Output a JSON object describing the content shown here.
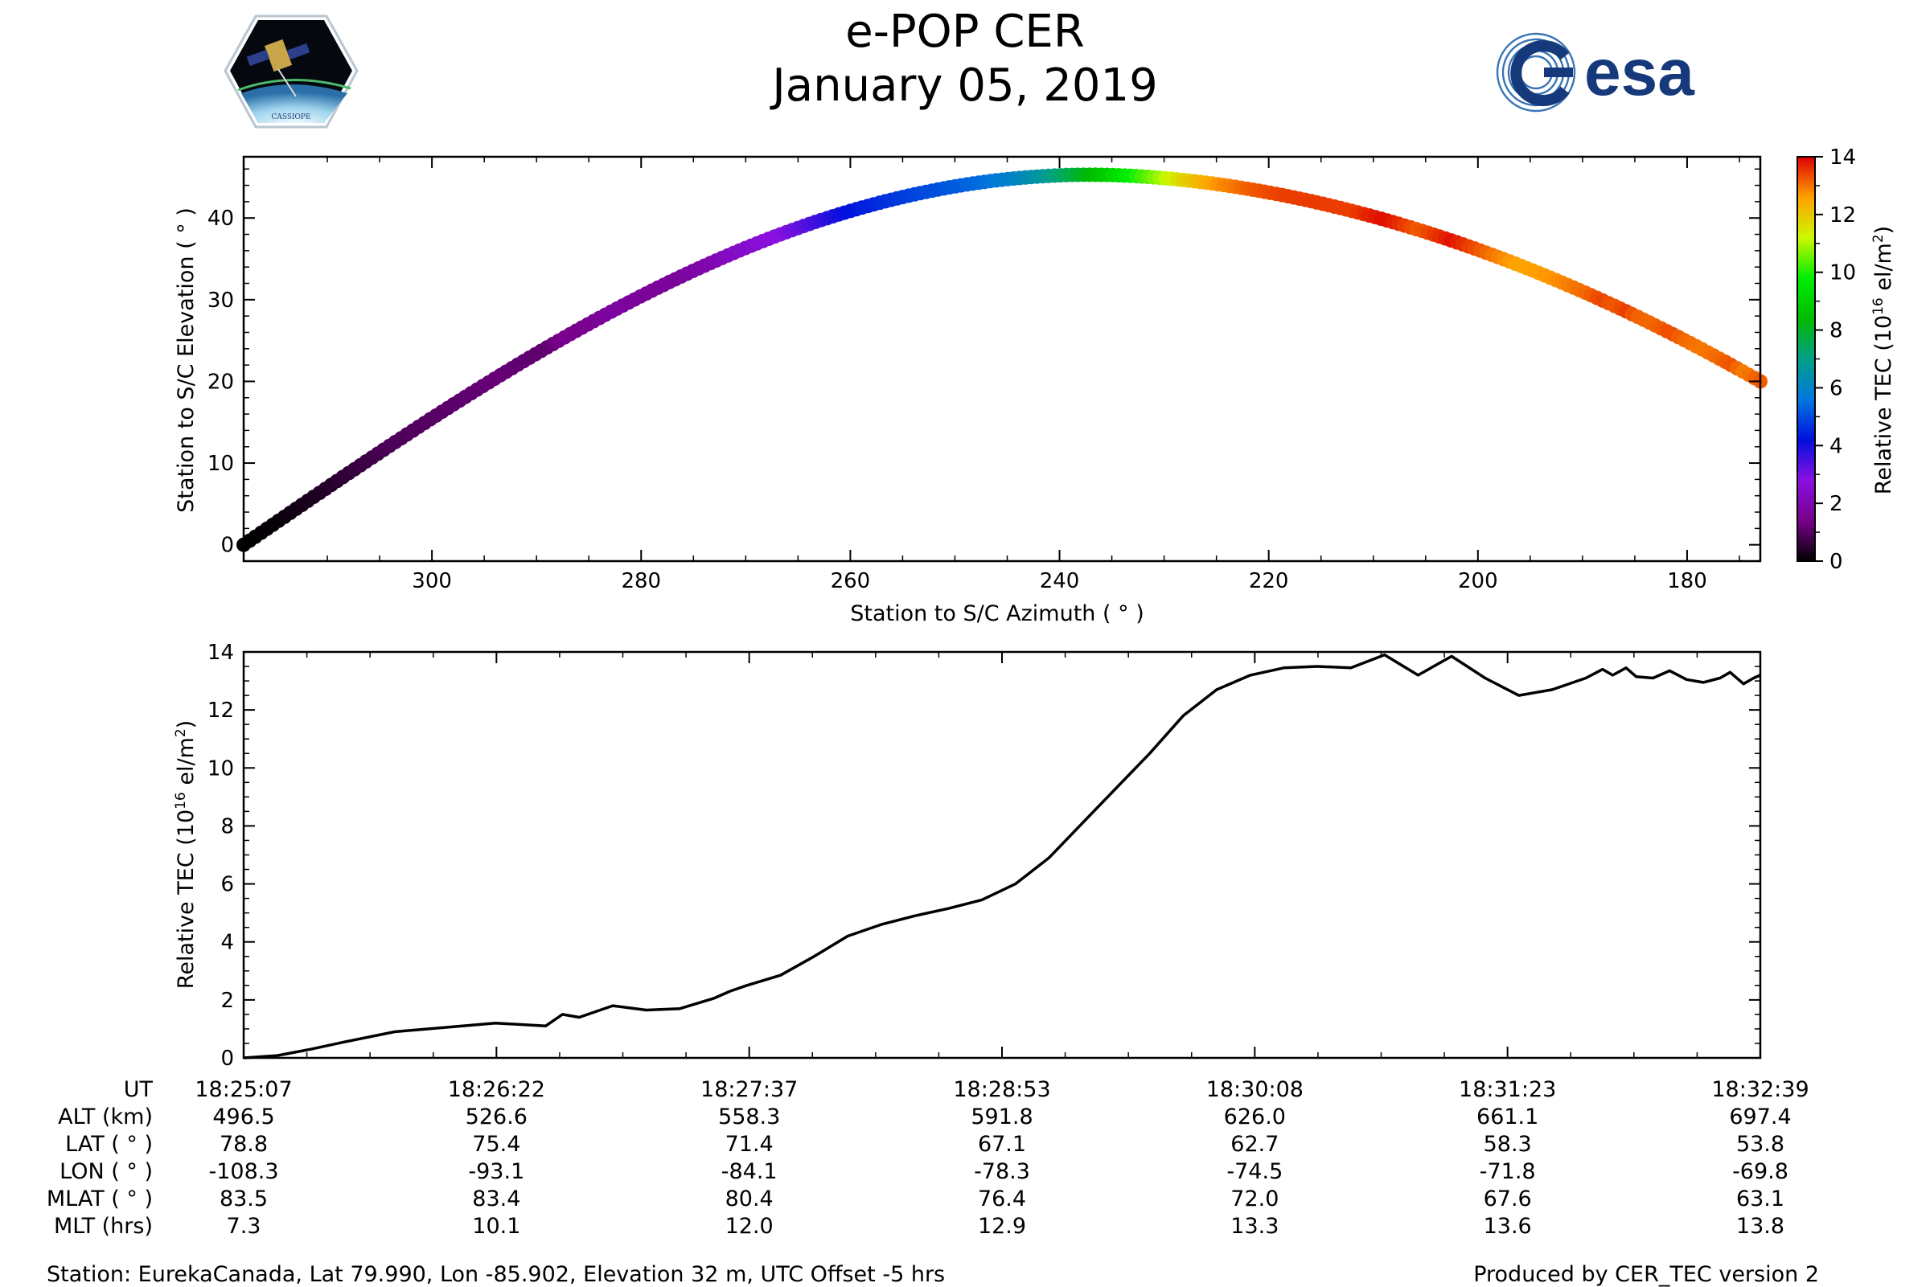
{
  "header": {
    "title": "e-POP CER",
    "date": "January 05, 2019",
    "logo_left_text": "CASSIOPE",
    "logo_right_text": "esa"
  },
  "chart_data": [
    {
      "id": "elevation-azimuth",
      "type": "scatter",
      "xlabel": "Station to S/C Azimuth ( ° )",
      "ylabel": "Station to S/C Elevation ( ° )",
      "xlim": [
        318,
        173
      ],
      "ylim": [
        -2,
        47.5
      ],
      "xticks": [
        300,
        280,
        260,
        240,
        220,
        200,
        180
      ],
      "yticks": [
        0,
        10,
        20,
        30,
        40
      ],
      "track": {
        "azimuth_start": 318,
        "azimuth_end": 173,
        "peak_azimuth": 237,
        "peak_elevation": 45.3,
        "end_elevation": 20.0
      },
      "colorbar": {
        "label": "Relative TEC (10^16 el/m^2)",
        "label_main": "Relative TEC (10",
        "label_sup": "16",
        "label_unit": " el/m",
        "label_sup2": "2",
        "label_close": ")",
        "range": [
          0,
          14
        ],
        "ticks": [
          0,
          2,
          4,
          6,
          8,
          10,
          12,
          14
        ],
        "colormap": "nipy_spectral"
      }
    },
    {
      "id": "tec-time",
      "type": "line",
      "ylabel": "Relative TEC (10^16 el/m^2)",
      "ylabel_main": "Relative TEC (10",
      "ylabel_sup": "16",
      "ylabel_unit": " el/m",
      "ylabel_sup2": "2",
      "ylabel_close": ")",
      "ylim": [
        0,
        14
      ],
      "yticks": [
        0,
        2,
        4,
        6,
        8,
        10,
        12,
        14
      ],
      "x_unit": "seconds since 18:25:07",
      "xlim": [
        0,
        452
      ],
      "series": [
        {
          "name": "Relative TEC",
          "x": [
            0,
            10,
            20,
            30,
            45,
            60,
            75,
            90,
            95,
            100,
            110,
            120,
            130,
            140,
            145,
            150,
            160,
            170,
            180,
            190,
            200,
            210,
            220,
            230,
            240,
            250,
            260,
            270,
            280,
            290,
            300,
            310,
            320,
            330,
            340,
            350,
            360,
            370,
            380,
            390,
            400,
            405,
            408,
            412,
            415,
            420,
            425,
            430,
            435,
            440,
            443,
            447,
            450,
            452
          ],
          "values": [
            0,
            0.08,
            0.3,
            0.55,
            0.9,
            1.05,
            1.2,
            1.1,
            1.5,
            1.4,
            1.8,
            1.65,
            1.7,
            2.05,
            2.3,
            2.5,
            2.85,
            3.5,
            4.2,
            4.6,
            4.9,
            5.15,
            5.45,
            6.0,
            6.9,
            8.1,
            9.3,
            10.5,
            11.8,
            12.7,
            13.2,
            13.45,
            13.5,
            13.45,
            13.9,
            13.2,
            13.85,
            13.1,
            12.5,
            12.7,
            13.1,
            13.4,
            13.2,
            13.45,
            13.15,
            13.1,
            13.35,
            13.05,
            12.95,
            13.1,
            13.3,
            12.9,
            13.1,
            13.2
          ]
        }
      ]
    }
  ],
  "table": {
    "row_labels": [
      "UT",
      "ALT (km)",
      "LAT ( ° )",
      "LON ( ° )",
      "MLAT ( ° )",
      "MLT (hrs)"
    ],
    "columns": [
      [
        "18:25:07",
        "496.5",
        "78.8",
        "-108.3",
        "83.5",
        "7.3"
      ],
      [
        "18:26:22",
        "526.6",
        "75.4",
        "-93.1",
        "83.4",
        "10.1"
      ],
      [
        "18:27:37",
        "558.3",
        "71.4",
        "-84.1",
        "80.4",
        "12.0"
      ],
      [
        "18:28:53",
        "591.8",
        "67.1",
        "-78.3",
        "76.4",
        "12.9"
      ],
      [
        "18:30:08",
        "626.0",
        "62.7",
        "-74.5",
        "72.0",
        "13.3"
      ],
      [
        "18:31:23",
        "661.1",
        "58.3",
        "-71.8",
        "67.6",
        "13.6"
      ],
      [
        "18:32:39",
        "697.4",
        "53.8",
        "-69.8",
        "63.1",
        "13.8"
      ]
    ]
  },
  "footer": {
    "station": "Station: EurekaCanada, Lat 79.990, Lon -85.902, Elevation 32 m, UTC Offset -5 hrs",
    "producer": "Produced by CER_TEC version 2"
  }
}
